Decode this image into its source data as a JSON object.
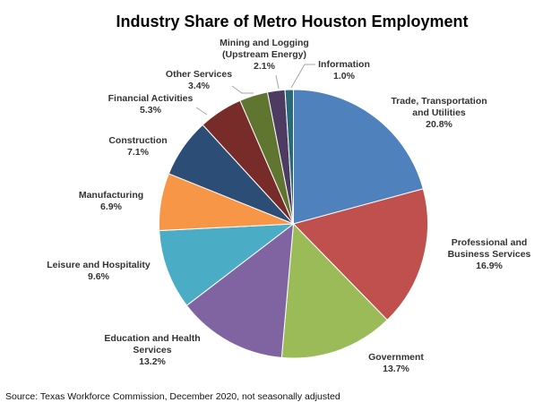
{
  "chart_data": {
    "type": "pie",
    "title": "Industry Share of Metro Houston Employment",
    "source": "Source: Texas Workforce Commission, December 2020, not seasonally adjusted",
    "slices": [
      {
        "label": [
          "Trade, Transportation",
          "and Utilities"
        ],
        "value_text": "20.8%",
        "value": 20.8,
        "color": "#4f81bd"
      },
      {
        "label": [
          "Professional and",
          "Business Services"
        ],
        "value_text": "16.9%",
        "value": 16.9,
        "color": "#c0504d"
      },
      {
        "label": [
          "Government"
        ],
        "value_text": "13.7%",
        "value": 13.7,
        "color": "#9bbb59"
      },
      {
        "label": [
          "Education and Health",
          "Services"
        ],
        "value_text": "13.2%",
        "value": 13.2,
        "color": "#8064a2"
      },
      {
        "label": [
          "Leisure and Hospitality"
        ],
        "value_text": "9.6%",
        "value": 9.6,
        "color": "#4bacc6"
      },
      {
        "label": [
          "Manufacturing"
        ],
        "value_text": "6.9%",
        "value": 6.9,
        "color": "#f79646"
      },
      {
        "label": [
          "Construction"
        ],
        "value_text": "7.1%",
        "value": 7.1,
        "color": "#2c4d75"
      },
      {
        "label": [
          "Financial Activities"
        ],
        "value_text": "5.3%",
        "value": 5.3,
        "color": "#772c2a"
      },
      {
        "label": [
          "Other Services"
        ],
        "value_text": "3.4%",
        "value": 3.4,
        "color": "#5f7530"
      },
      {
        "label": [
          "Mining and Logging",
          "(Upstream Energy)"
        ],
        "value_text": "2.1%",
        "value": 2.1,
        "color": "#4d3b62"
      },
      {
        "label": [
          "Information"
        ],
        "value_text": "1.0%",
        "value": 1.0,
        "color": "#276a7c"
      }
    ]
  }
}
